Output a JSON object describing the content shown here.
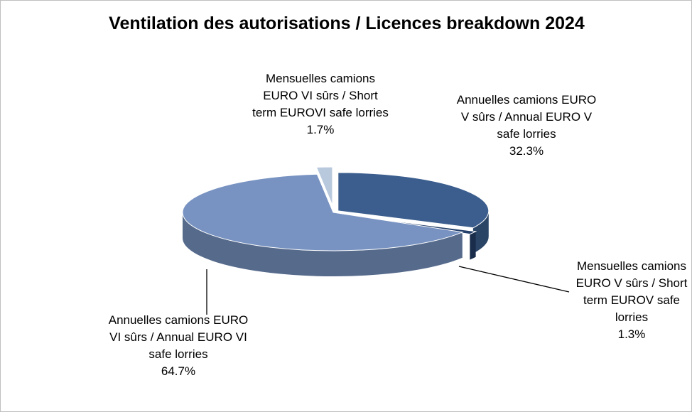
{
  "chart_data": {
    "type": "pie",
    "title": "Ventilation des autorisations / Licences breakdown 2024",
    "categories": [
      "Annuelles camions EURO V sûrs / Annual EURO V safe lorries",
      "Mensuelles camions EURO V sûrs / Short term EUROV safe lorries",
      "Annuelles camions EURO VI sûrs / Annual EURO VI safe lorries",
      "Mensuelles camions EURO VI sûrs / Short term EUROVI safe lorries"
    ],
    "values": [
      32.3,
      1.3,
      64.7,
      1.7
    ],
    "value_labels": [
      "32.3%",
      "1.3%",
      "64.7%",
      "1.7%"
    ],
    "colors": [
      "#3b5e8e",
      "#24406a",
      "#7893c2",
      "#b9c9dd"
    ]
  }
}
